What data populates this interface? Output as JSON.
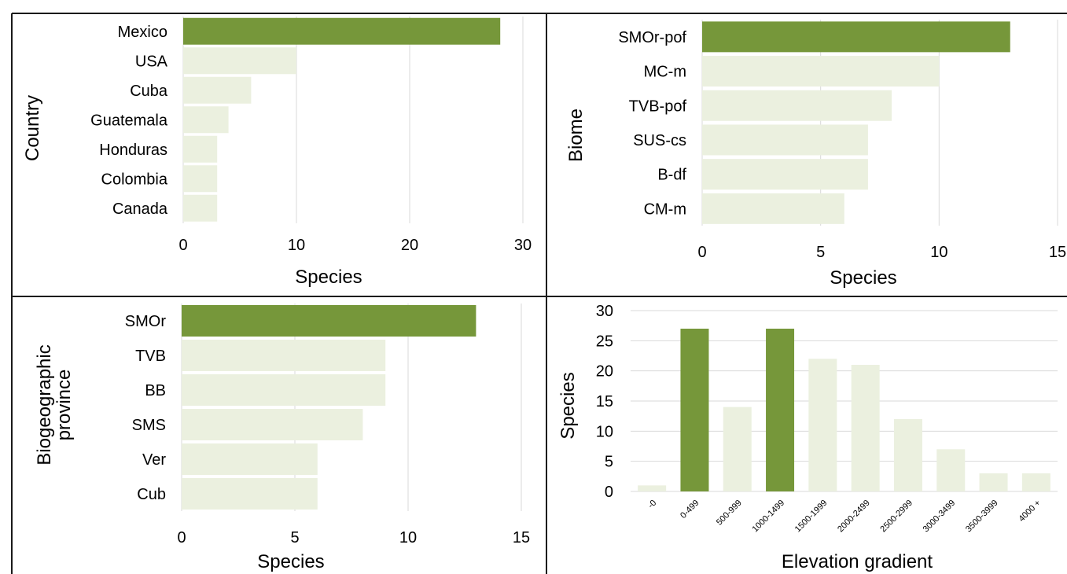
{
  "colors": {
    "highlight": "#76973a",
    "base": "#ebf0df",
    "grid": "#d9d9d9",
    "frame": "#1a1a1a"
  },
  "chart_data": [
    {
      "type": "bar",
      "orientation": "horizontal",
      "categories": [
        "Mexico",
        "USA",
        "Cuba",
        "Guatemala",
        "Honduras",
        "Colombia",
        "Canada"
      ],
      "values": [
        28,
        10,
        6,
        4,
        3,
        3,
        3
      ],
      "highlight": [
        true,
        false,
        false,
        false,
        false,
        false,
        false
      ],
      "xlim": [
        0,
        30
      ],
      "xticks": [
        0,
        10,
        20,
        30
      ],
      "xlabel": "Species",
      "ylabel": "Country",
      "grid": true
    },
    {
      "type": "bar",
      "orientation": "horizontal",
      "categories": [
        "SMOr-pof",
        "MC-m",
        "TVB-pof",
        "SUS-cs",
        "B-df",
        "CM-m"
      ],
      "values": [
        13,
        10,
        8,
        7,
        7,
        6
      ],
      "highlight": [
        true,
        false,
        false,
        false,
        false,
        false
      ],
      "xlim": [
        0,
        15
      ],
      "xticks": [
        0,
        5,
        10,
        15
      ],
      "xlabel": "Species",
      "ylabel": "Biome",
      "grid": true
    },
    {
      "type": "bar",
      "orientation": "horizontal",
      "categories": [
        "SMOr",
        "TVB",
        "BB",
        "SMS",
        "Ver",
        "Cub"
      ],
      "values": [
        13,
        9,
        9,
        8,
        6,
        6
      ],
      "highlight": [
        true,
        false,
        false,
        false,
        false,
        false
      ],
      "xlim": [
        0,
        15
      ],
      "xticks": [
        0,
        5,
        10,
        15
      ],
      "xlabel": "Species",
      "ylabel_lines": [
        "Biogeographic",
        "province"
      ],
      "grid": true
    },
    {
      "type": "bar",
      "orientation": "vertical",
      "categories": [
        "-0",
        "0-499",
        "500-999",
        "1000-1499",
        "1500-1999",
        "2000-2499",
        "2500-2999",
        "3000-3499",
        "3500-3999",
        "4000 +"
      ],
      "values": [
        1,
        27,
        14,
        27,
        22,
        21,
        12,
        7,
        3,
        3
      ],
      "highlight": [
        false,
        true,
        false,
        true,
        false,
        false,
        false,
        false,
        false,
        false
      ],
      "ylim": [
        0,
        30
      ],
      "yticks": [
        0,
        5,
        10,
        15,
        20,
        25,
        30
      ],
      "xlabel": "Elevation gradient",
      "ylabel": "Species",
      "grid": true
    }
  ]
}
